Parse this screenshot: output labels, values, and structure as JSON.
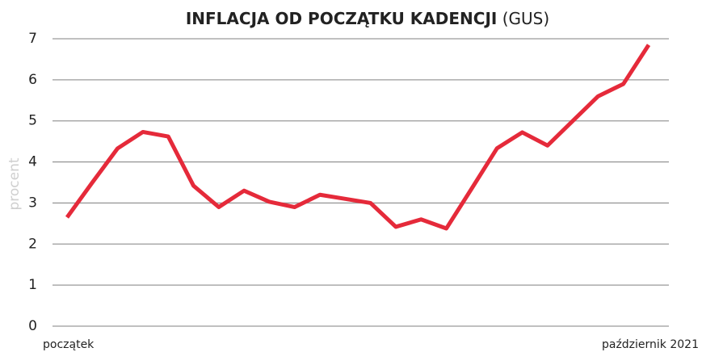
{
  "chart_data": {
    "type": "line",
    "title": "INFLACJA OD POCZĄTKU KADENCJI",
    "title_suffix": "(GUS)",
    "y_label": "procent",
    "categories": [
      "początek",
      null,
      null,
      null,
      null,
      null,
      null,
      null,
      null,
      null,
      null,
      null,
      null,
      null,
      null,
      null,
      null,
      null,
      null,
      null,
      null,
      null,
      null,
      "październik 2021"
    ],
    "series": [
      {
        "name": "inflacja",
        "color": "#e52a3a",
        "values": [
          2.65,
          3.5,
          4.33,
          4.73,
          4.62,
          3.42,
          2.9,
          3.3,
          3.03,
          2.9,
          3.2,
          3.1,
          3.0,
          2.42,
          2.6,
          2.38,
          3.35,
          4.33,
          4.72,
          4.4,
          5.0,
          5.6,
          5.9,
          6.85
        ]
      }
    ],
    "ylim": [
      0,
      7
    ],
    "yticks": [
      0,
      1,
      2,
      3,
      4,
      5,
      6,
      7
    ],
    "grid": true
  }
}
